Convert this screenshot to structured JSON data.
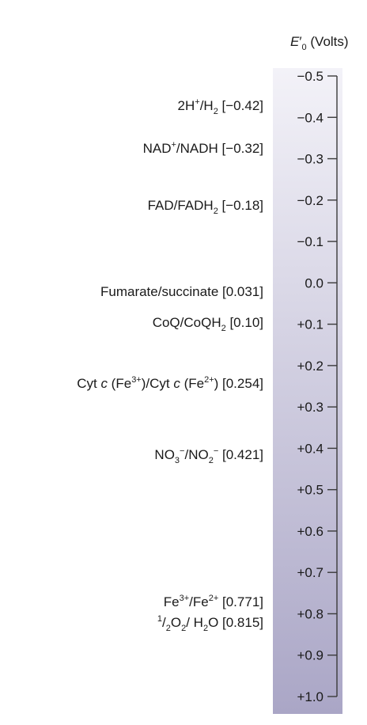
{
  "header": {
    "e_symbol": "E",
    "e_prime": "′",
    "e_sub": "0",
    "units": " (Volts)"
  },
  "colors": {
    "bar_top": "#f3f2f8",
    "bar_bottom": "#aaa6c6",
    "axis": "#3a3a3a",
    "text": "#1a1a1a"
  },
  "scale": {
    "min": -0.5,
    "max": 1.0,
    "ticks": [
      {
        "value": -0.5,
        "label": "−0.5"
      },
      {
        "value": -0.4,
        "label": "−0.4"
      },
      {
        "value": -0.3,
        "label": "−0.3"
      },
      {
        "value": -0.2,
        "label": "−0.2"
      },
      {
        "value": -0.1,
        "label": "−0.1"
      },
      {
        "value": 0.0,
        "label": "0.0"
      },
      {
        "value": 0.1,
        "label": "+0.1"
      },
      {
        "value": 0.2,
        "label": "+0.2"
      },
      {
        "value": 0.3,
        "label": "+0.3"
      },
      {
        "value": 0.4,
        "label": "+0.4"
      },
      {
        "value": 0.5,
        "label": "+0.5"
      },
      {
        "value": 0.6,
        "label": "+0.6"
      },
      {
        "value": 0.7,
        "label": "+0.7"
      },
      {
        "value": 0.8,
        "label": "+0.8"
      },
      {
        "value": 0.9,
        "label": "+0.9"
      },
      {
        "value": 1.0,
        "label": "+1.0"
      }
    ]
  },
  "couples": [
    {
      "id": "h2",
      "value": -0.42,
      "parts": [
        {
          "t": "2H"
        },
        {
          "t": "+",
          "s": "sup"
        },
        {
          "t": "/H"
        },
        {
          "t": "2",
          "s": "sub"
        },
        {
          "t": " [−0.42]"
        }
      ]
    },
    {
      "id": "nad",
      "value": -0.32,
      "parts": [
        {
          "t": "NAD"
        },
        {
          "t": "+",
          "s": "sup"
        },
        {
          "t": "/NADH [−0.32]"
        }
      ]
    },
    {
      "id": "fad",
      "value": -0.18,
      "parts": [
        {
          "t": "FAD/FADH"
        },
        {
          "t": "2",
          "s": "sub"
        },
        {
          "t": " [−0.18]"
        }
      ]
    },
    {
      "id": "fumarate",
      "value": 0.031,
      "parts": [
        {
          "t": "Fumarate/succinate [0.031]"
        }
      ]
    },
    {
      "id": "coq",
      "value": 0.1,
      "parts": [
        {
          "t": "CoQ/CoQH"
        },
        {
          "t": "2",
          "s": "sub"
        },
        {
          "t": " [0.10]"
        }
      ]
    },
    {
      "id": "cytc",
      "value": 0.254,
      "parts": [
        {
          "t": "Cyt "
        },
        {
          "t": "c",
          "s": "it"
        },
        {
          "t": " (Fe"
        },
        {
          "t": "3+",
          "s": "sup"
        },
        {
          "t": ")/Cyt "
        },
        {
          "t": "c",
          "s": "it"
        },
        {
          "t": " (Fe"
        },
        {
          "t": "2+",
          "s": "sup"
        },
        {
          "t": ") [0.254]"
        }
      ]
    },
    {
      "id": "nitrate",
      "value": 0.421,
      "parts": [
        {
          "t": "NO"
        },
        {
          "t": "3",
          "s": "sub"
        },
        {
          "t": "−",
          "s": "sup"
        },
        {
          "t": "/NO"
        },
        {
          "t": "2",
          "s": "sub"
        },
        {
          "t": "−",
          "s": "sup"
        },
        {
          "t": " [0.421]"
        }
      ]
    },
    {
      "id": "iron",
      "value": 0.771,
      "parts": [
        {
          "t": "Fe"
        },
        {
          "t": "3+",
          "s": "sup"
        },
        {
          "t": "/Fe"
        },
        {
          "t": "2+",
          "s": "sup"
        },
        {
          "t": " [0.771]"
        }
      ]
    },
    {
      "id": "oxygen",
      "value": 0.815,
      "parts": [
        {
          "t": "1",
          "s": "sup"
        },
        {
          "t": "/"
        },
        {
          "t": "2",
          "s": "sub"
        },
        {
          "t": "O"
        },
        {
          "t": "2",
          "s": "sub"
        },
        {
          "t": "/ H"
        },
        {
          "t": "2",
          "s": "sub"
        },
        {
          "t": "O [0.815]"
        }
      ]
    }
  ]
}
